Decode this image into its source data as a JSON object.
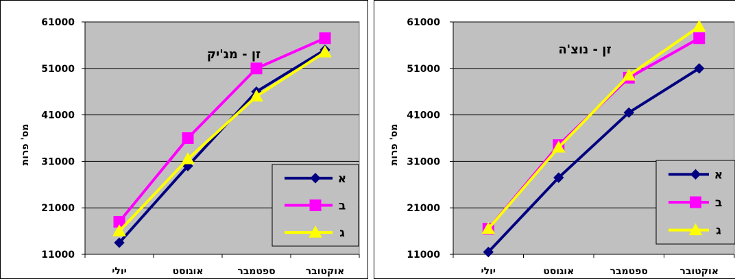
{
  "chart_data": [
    {
      "type": "line",
      "title": "זן - מג'יק",
      "xlabel": "",
      "ylabel": "מס' פרות",
      "categories": [
        "יולי",
        "אוגוסט",
        "ספטמבר",
        "אוקטובר"
      ],
      "yticks": [
        11000,
        21000,
        31000,
        41000,
        51000,
        61000
      ],
      "ylim": [
        11000,
        61000
      ],
      "grid": true,
      "legend_position": "right",
      "series": [
        {
          "name": "א",
          "values": [
            13500,
            30000,
            46000,
            55000
          ],
          "color": "#000080",
          "marker": "diamond"
        },
        {
          "name": "ב",
          "values": [
            18000,
            36000,
            51000,
            57500
          ],
          "color": "#FF00FF",
          "marker": "square"
        },
        {
          "name": "ג",
          "values": [
            16000,
            31500,
            45000,
            54500
          ],
          "color": "#FFFF00",
          "marker": "triangle"
        }
      ]
    },
    {
      "type": "line",
      "title": "זן - נוצ'ה",
      "xlabel": "",
      "ylabel": "מס' פרות",
      "categories": [
        "יולי",
        "אוגוסט",
        "ספטמבר",
        "אוקטובר"
      ],
      "yticks": [
        11000,
        21000,
        31000,
        41000,
        51000,
        61000
      ],
      "ylim": [
        11000,
        61000
      ],
      "grid": true,
      "legend_position": "bottom-right",
      "series": [
        {
          "name": "א",
          "values": [
            11500,
            27500,
            41500,
            51000
          ],
          "color": "#000080",
          "marker": "diamond"
        },
        {
          "name": "ב",
          "values": [
            16500,
            34500,
            49000,
            57500
          ],
          "color": "#FF00FF",
          "marker": "square"
        },
        {
          "name": "ג",
          "values": [
            16500,
            34000,
            49500,
            60000
          ],
          "color": "#FFFF00",
          "marker": "triangle"
        }
      ]
    }
  ]
}
